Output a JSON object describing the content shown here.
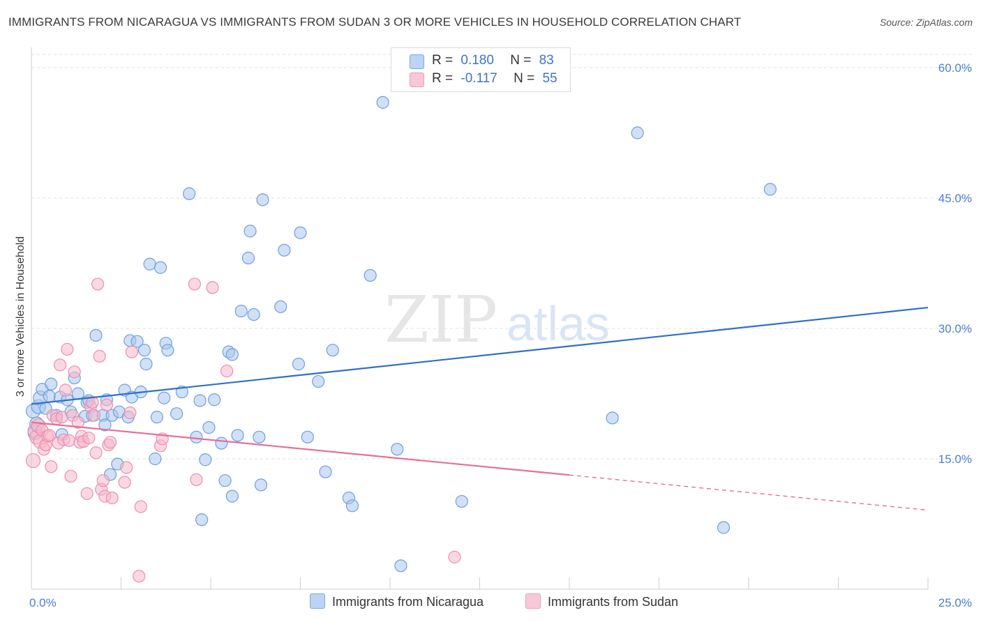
{
  "title": "IMMIGRANTS FROM NICARAGUA VS IMMIGRANTS FROM SUDAN 3 OR MORE VEHICLES IN HOUSEHOLD CORRELATION CHART",
  "source": "Source: ZipAtlas.com",
  "watermark": {
    "zip": "ZIP",
    "atlas": "atlas"
  },
  "legend": {
    "nicaragua": {
      "r_label": "R =",
      "r_value": "0.180",
      "n_label": "N =",
      "n_value": "83"
    },
    "sudan": {
      "r_label": "R =",
      "r_value": "-0.117",
      "n_label": "N =",
      "n_value": "55"
    }
  },
  "colors": {
    "nicaragua_fill": "#a9c6ee",
    "nicaragua_stroke": "#6f9fdc",
    "nicaragua_line": "#2f6fcc",
    "sudan_fill": "#f5b8cc",
    "sudan_stroke": "#ea8fad",
    "sudan_line": "#e46f98",
    "tick_text": "#4a7fd0",
    "grid": "#e2e2e2"
  },
  "chart_data": {
    "type": "scatter",
    "title": "IMMIGRANTS FROM NICARAGUA VS IMMIGRANTS FROM SUDAN 3 OR MORE VEHICLES IN HOUSEHOLD CORRELATION CHART",
    "xlabel": "",
    "ylabel": "3 or more Vehicles in Household",
    "xlim": [
      0,
      25
    ],
    "ylim": [
      0,
      60
    ],
    "x_tick_labels": [
      "0.0%",
      "25.0%"
    ],
    "y_ticks": [
      15,
      30,
      45,
      60
    ],
    "y_tick_labels": [
      "15.0%",
      "30.0%",
      "45.0%",
      "60.0%"
    ],
    "grid": true,
    "legend_position": "top-center",
    "series": [
      {
        "name": "Immigrants from Nicaragua",
        "r": 0.18,
        "n": 83,
        "trend": {
          "x": [
            0,
            25
          ],
          "y": [
            21.3,
            32.4
          ],
          "dashed_from_x": null
        },
        "points": [
          [
            0.05,
            20.5
          ],
          [
            0.1,
            18.0
          ],
          [
            0.15,
            19.0
          ],
          [
            0.2,
            21.0
          ],
          [
            0.25,
            22.0
          ],
          [
            0.3,
            23.0
          ],
          [
            0.4,
            20.8
          ],
          [
            0.5,
            22.2
          ],
          [
            0.55,
            23.6
          ],
          [
            0.7,
            20.0
          ],
          [
            0.8,
            22.1
          ],
          [
            0.85,
            17.8
          ],
          [
            1.0,
            21.8
          ],
          [
            1.1,
            20.4
          ],
          [
            1.2,
            24.3
          ],
          [
            1.3,
            22.5
          ],
          [
            1.5,
            19.9
          ],
          [
            1.55,
            21.5
          ],
          [
            1.6,
            21.7
          ],
          [
            1.7,
            20.0
          ],
          [
            1.8,
            29.2
          ],
          [
            2.0,
            20.0
          ],
          [
            2.05,
            18.9
          ],
          [
            2.1,
            21.8
          ],
          [
            2.2,
            13.2
          ],
          [
            2.25,
            20.0
          ],
          [
            2.4,
            14.4
          ],
          [
            2.45,
            20.4
          ],
          [
            2.6,
            22.9
          ],
          [
            2.7,
            19.8
          ],
          [
            2.75,
            28.6
          ],
          [
            2.8,
            22.1
          ],
          [
            2.95,
            28.5
          ],
          [
            3.05,
            22.7
          ],
          [
            3.15,
            27.5
          ],
          [
            3.2,
            25.9
          ],
          [
            3.3,
            37.4
          ],
          [
            3.45,
            15.0
          ],
          [
            3.5,
            19.8
          ],
          [
            3.6,
            37.0
          ],
          [
            3.7,
            22.0
          ],
          [
            3.75,
            28.3
          ],
          [
            3.8,
            27.5
          ],
          [
            4.05,
            20.2
          ],
          [
            4.2,
            22.7
          ],
          [
            4.4,
            45.5
          ],
          [
            4.6,
            17.5
          ],
          [
            4.7,
            21.7
          ],
          [
            4.75,
            8.0
          ],
          [
            4.85,
            14.9
          ],
          [
            4.95,
            18.6
          ],
          [
            5.1,
            21.8
          ],
          [
            5.3,
            16.8
          ],
          [
            5.4,
            12.5
          ],
          [
            5.5,
            27.3
          ],
          [
            5.6,
            10.7
          ],
          [
            5.6,
            27.0
          ],
          [
            5.75,
            17.7
          ],
          [
            5.85,
            32.0
          ],
          [
            6.05,
            38.1
          ],
          [
            6.1,
            41.2
          ],
          [
            6.2,
            31.6
          ],
          [
            6.35,
            17.5
          ],
          [
            6.4,
            12.0
          ],
          [
            6.45,
            44.8
          ],
          [
            6.95,
            32.5
          ],
          [
            7.05,
            39.0
          ],
          [
            7.45,
            25.9
          ],
          [
            7.5,
            41.0
          ],
          [
            7.7,
            17.5
          ],
          [
            8.0,
            23.9
          ],
          [
            8.2,
            13.5
          ],
          [
            8.4,
            27.5
          ],
          [
            8.85,
            10.5
          ],
          [
            8.95,
            9.6
          ],
          [
            9.45,
            36.1
          ],
          [
            9.8,
            56.0
          ],
          [
            10.2,
            16.1
          ],
          [
            10.3,
            2.7
          ],
          [
            12.0,
            10.1
          ],
          [
            16.2,
            19.7
          ],
          [
            16.9,
            52.5
          ],
          [
            19.3,
            7.1
          ],
          [
            20.6,
            46.0
          ]
        ]
      },
      {
        "name": "Immigrants from Sudan",
        "r": -0.117,
        "n": 55,
        "trend": {
          "x": [
            0,
            25
          ],
          "y": [
            19.2,
            9.1
          ],
          "dashed_from_x": 15
        },
        "points": [
          [
            0.05,
            14.8
          ],
          [
            0.1,
            18.2
          ],
          [
            0.15,
            17.5
          ],
          [
            0.2,
            18.8
          ],
          [
            0.25,
            17.0
          ],
          [
            0.3,
            18.3
          ],
          [
            0.35,
            16.1
          ],
          [
            0.4,
            16.6
          ],
          [
            0.45,
            17.6
          ],
          [
            0.5,
            17.7
          ],
          [
            0.55,
            14.1
          ],
          [
            0.6,
            20.0
          ],
          [
            0.7,
            19.6
          ],
          [
            0.75,
            16.8
          ],
          [
            0.8,
            25.8
          ],
          [
            0.85,
            19.8
          ],
          [
            0.9,
            17.2
          ],
          [
            0.95,
            22.9
          ],
          [
            1.0,
            27.6
          ],
          [
            1.05,
            17.1
          ],
          [
            1.1,
            13.0
          ],
          [
            1.15,
            20.0
          ],
          [
            1.2,
            25.0
          ],
          [
            1.3,
            19.2
          ],
          [
            1.35,
            16.9
          ],
          [
            1.4,
            17.6
          ],
          [
            1.45,
            17.0
          ],
          [
            1.55,
            11.0
          ],
          [
            1.6,
            17.4
          ],
          [
            1.65,
            21.0
          ],
          [
            1.7,
            21.5
          ],
          [
            1.75,
            20.0
          ],
          [
            1.8,
            15.7
          ],
          [
            1.85,
            35.1
          ],
          [
            1.9,
            26.8
          ],
          [
            1.95,
            11.5
          ],
          [
            2.0,
            12.5
          ],
          [
            2.05,
            10.7
          ],
          [
            2.1,
            21.2
          ],
          [
            2.15,
            16.6
          ],
          [
            2.2,
            16.9
          ],
          [
            2.25,
            10.5
          ],
          [
            2.6,
            12.3
          ],
          [
            2.65,
            14.0
          ],
          [
            2.75,
            20.3
          ],
          [
            2.8,
            27.3
          ],
          [
            3.0,
            1.5
          ],
          [
            3.05,
            9.5
          ],
          [
            3.6,
            16.5
          ],
          [
            3.65,
            17.3
          ],
          [
            4.55,
            35.1
          ],
          [
            4.6,
            12.6
          ],
          [
            5.05,
            34.7
          ],
          [
            5.45,
            25.1
          ],
          [
            11.8,
            3.7
          ]
        ]
      }
    ]
  },
  "bottom_legend": {
    "nicaragua": "Immigrants from Nicaragua",
    "sudan": "Immigrants from Sudan"
  }
}
